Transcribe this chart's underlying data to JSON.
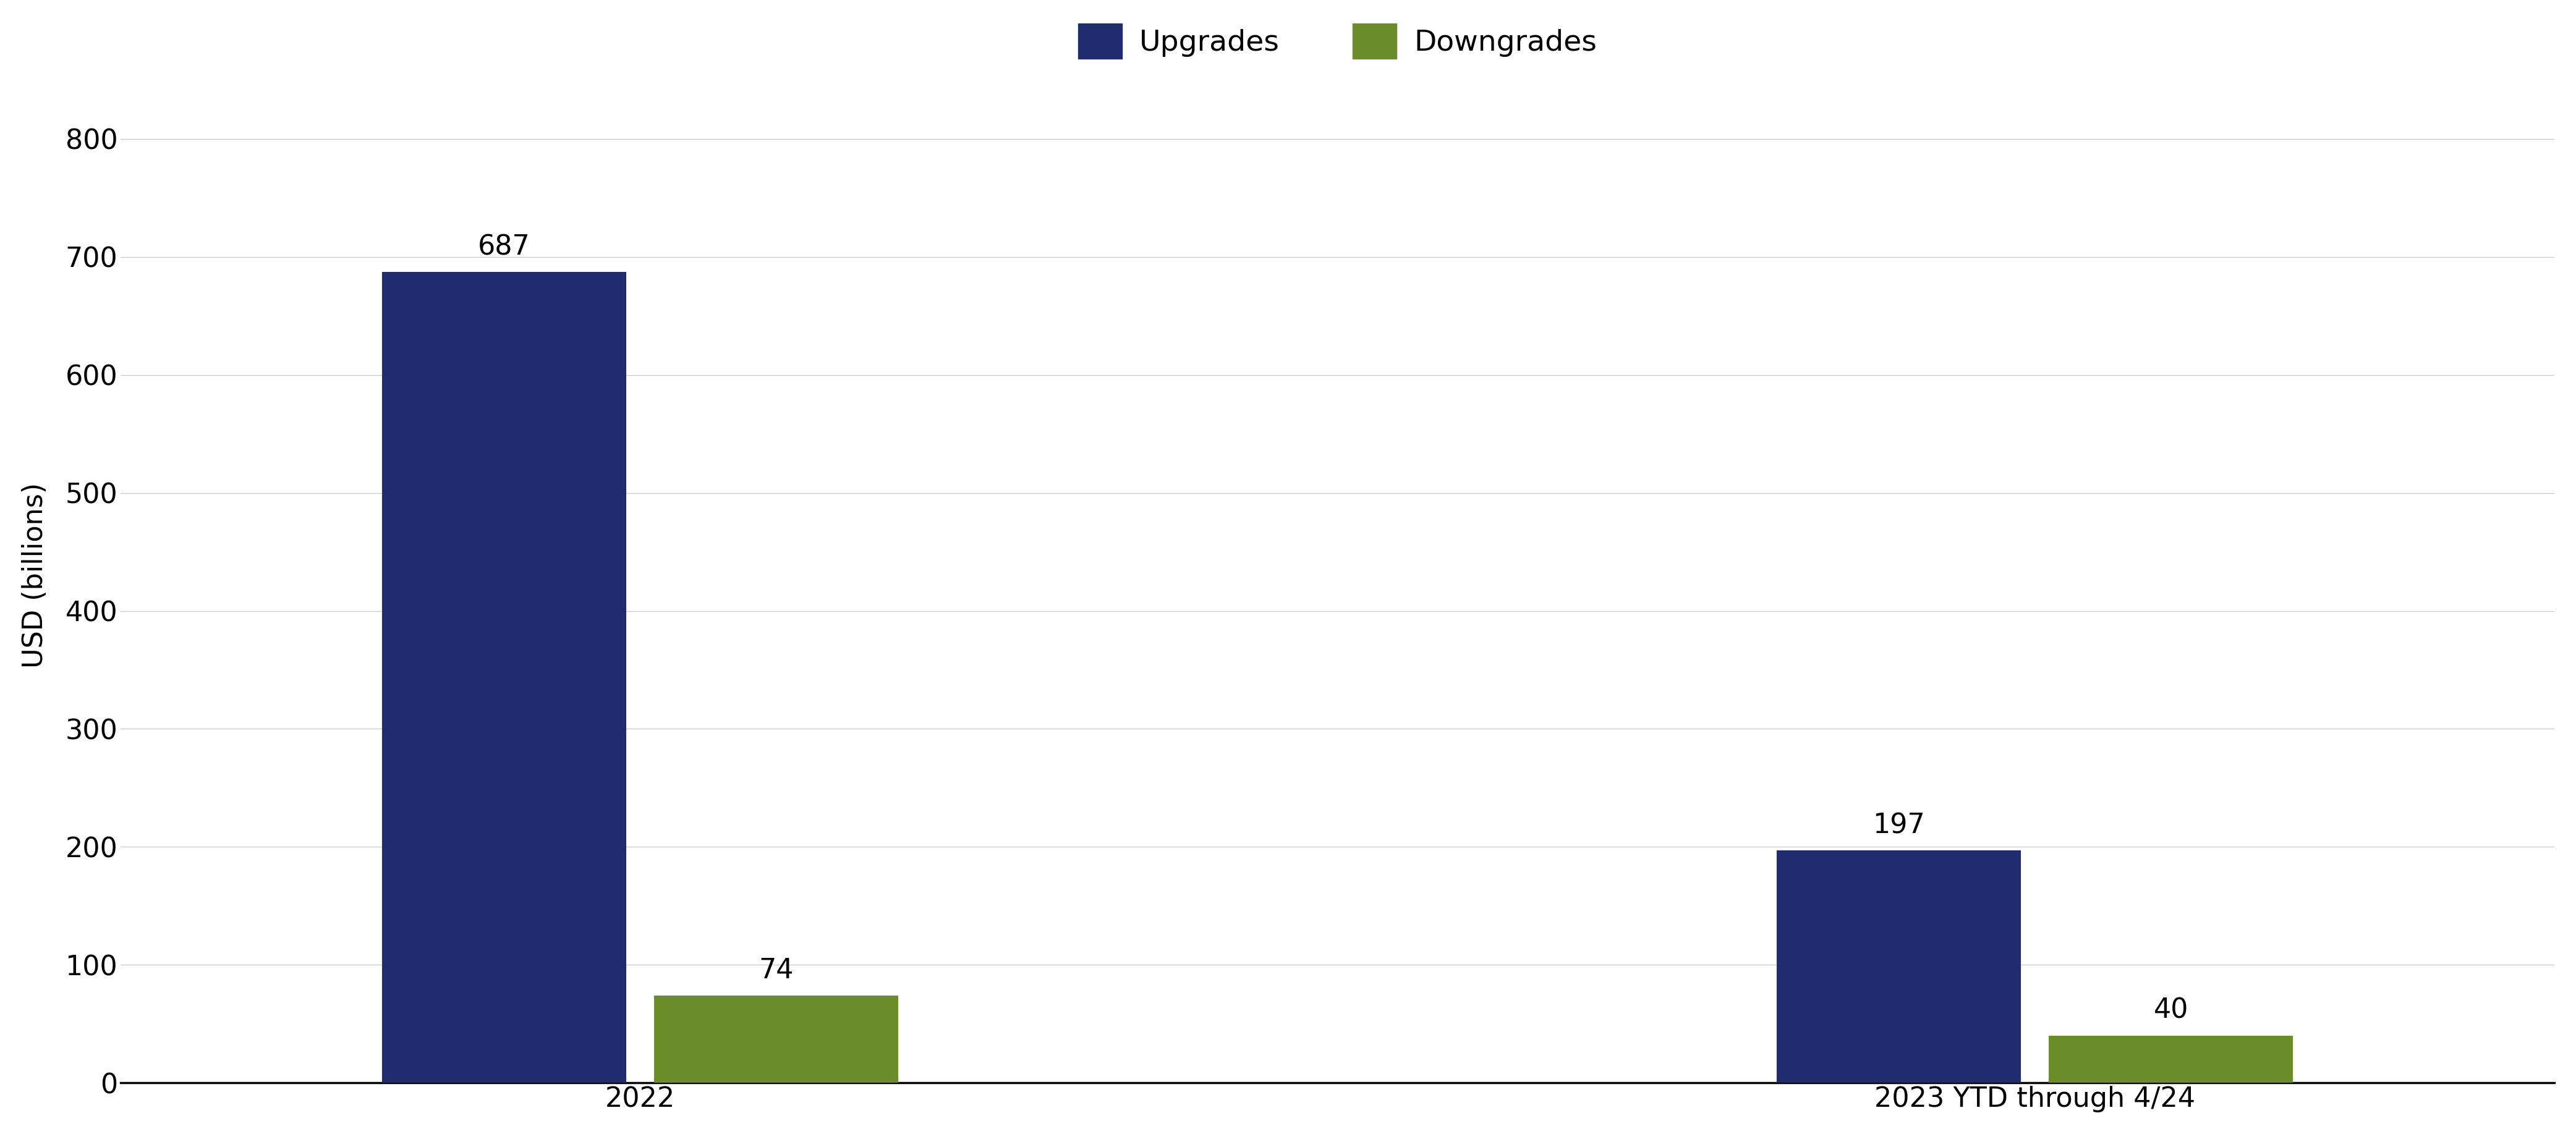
{
  "categories": [
    "2022",
    "2023 YTD through 4/24"
  ],
  "upgrades": [
    687,
    197
  ],
  "downgrades": [
    74,
    40
  ],
  "upgrade_color": "#1f2d6e",
  "downgrade_color": "#6b8c2a",
  "ylabel": "USD (billions)",
  "ylim": [
    0,
    860
  ],
  "yticks": [
    0,
    100,
    200,
    300,
    400,
    500,
    600,
    700,
    800
  ],
  "legend_labels": [
    "Upgrades",
    "Downgrades"
  ],
  "bar_width": 0.35,
  "group_positions": [
    1.0,
    3.0
  ],
  "tick_fontsize": 32,
  "legend_fontsize": 34,
  "ylabel_fontsize": 32,
  "annotation_fontsize": 32,
  "background_color": "#ffffff",
  "grid_color": "#cccccc"
}
